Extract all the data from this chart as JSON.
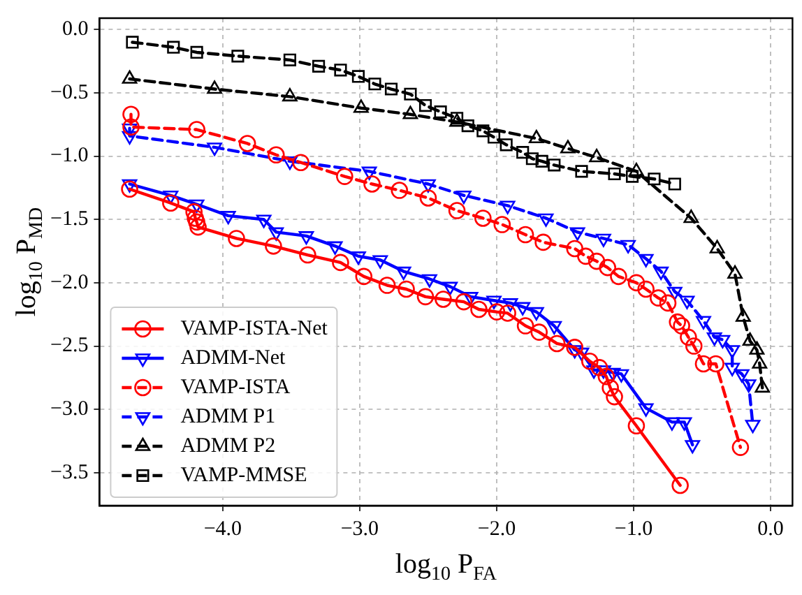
{
  "chart_data": {
    "type": "line",
    "xlabel": "log$_{10}$ P$_{FA}$",
    "ylabel": "log$_{10}$ P$_{MD}$",
    "xlim": [
      -4.9,
      0.16
    ],
    "ylim": [
      -3.76,
      0.09
    ],
    "xticks": [
      {
        "value": -4,
        "label": "−4.0"
      },
      {
        "value": -3,
        "label": "−3.0"
      },
      {
        "value": -2,
        "label": "−2.0"
      },
      {
        "value": -1,
        "label": "−1.0"
      },
      {
        "value": 0,
        "label": "0.0"
      }
    ],
    "yticks": [
      {
        "value": -3.5,
        "label": "−3.5"
      },
      {
        "value": -3,
        "label": "−3.0"
      },
      {
        "value": -2.5,
        "label": "−2.5"
      },
      {
        "value": -2,
        "label": "−2.0"
      },
      {
        "value": -1.5,
        "label": "−1.5"
      },
      {
        "value": -1,
        "label": "−1.0"
      },
      {
        "value": -0.5,
        "label": "−0.5"
      },
      {
        "value": 0,
        "label": "0.0"
      }
    ],
    "grid": true,
    "legend": "bottom left",
    "series": [
      {
        "name": "VAMP-ISTA-Net",
        "color": "#ff0000",
        "marker": "circle",
        "line_style": "solid",
        "x": [
          -4.68,
          -4.38,
          -4.21,
          -4.2,
          -4.19,
          -4.18,
          -3.9,
          -3.63,
          -3.38,
          -3.14,
          -2.97,
          -2.8,
          -2.66,
          -2.52,
          -2.39,
          -2.24,
          -2.13,
          -2.0,
          -1.92,
          -1.79,
          -1.69,
          -1.56,
          -1.43,
          -1.32,
          -1.25,
          -1.2,
          -1.17,
          -1.14,
          -0.98,
          -0.66
        ],
        "values": [
          -1.26,
          -1.37,
          -1.44,
          -1.49,
          -1.52,
          -1.56,
          -1.65,
          -1.71,
          -1.78,
          -1.84,
          -1.95,
          -2.02,
          -2.05,
          -2.11,
          -2.13,
          -2.15,
          -2.21,
          -2.23,
          -2.24,
          -2.34,
          -2.39,
          -2.48,
          -2.51,
          -2.62,
          -2.67,
          -2.74,
          -2.83,
          -2.9,
          -3.13,
          -3.6
        ]
      },
      {
        "name": "ADMM-Net",
        "color": "#0000ff",
        "marker": "triangle-down",
        "line_style": "solid",
        "x": [
          -4.68,
          -4.38,
          -4.19,
          -3.96,
          -3.7,
          -3.61,
          -3.39,
          -3.18,
          -3.01,
          -2.85,
          -2.68,
          -2.49,
          -2.34,
          -2.19,
          -2.02,
          -1.9,
          -1.81,
          -1.71,
          -1.58,
          -1.43,
          -1.38,
          -1.29,
          -1.22,
          -1.15,
          -1.09,
          -0.91,
          -0.72,
          -0.63,
          -0.57
        ],
        "values": [
          -1.22,
          -1.31,
          -1.38,
          -1.47,
          -1.5,
          -1.6,
          -1.63,
          -1.71,
          -1.79,
          -1.82,
          -1.91,
          -1.97,
          -2.03,
          -2.11,
          -2.14,
          -2.16,
          -2.19,
          -2.23,
          -2.34,
          -2.53,
          -2.55,
          -2.69,
          -2.69,
          -2.71,
          -2.72,
          -2.99,
          -3.1,
          -3.1,
          -3.28
        ]
      },
      {
        "name": "VAMP-ISTA",
        "color": "#ff0000",
        "marker": "circle",
        "line_style": "dashed",
        "x": [
          -4.67,
          -4.67,
          -4.19,
          -3.82,
          -3.61,
          -3.43,
          -3.11,
          -2.91,
          -2.71,
          -2.5,
          -2.29,
          -2.1,
          -1.96,
          -1.79,
          -1.66,
          -1.43,
          -1.35,
          -1.27,
          -1.19,
          -1.11,
          -0.98,
          -0.91,
          -0.82,
          -0.75,
          -0.68,
          -0.65,
          -0.6,
          -0.56,
          -0.49,
          -0.4,
          -0.22
        ],
        "values": [
          -0.67,
          -0.77,
          -0.79,
          -0.9,
          -0.99,
          -1.05,
          -1.16,
          -1.22,
          -1.27,
          -1.33,
          -1.43,
          -1.49,
          -1.54,
          -1.62,
          -1.68,
          -1.73,
          -1.79,
          -1.83,
          -1.88,
          -1.95,
          -2.0,
          -2.05,
          -2.12,
          -2.16,
          -2.31,
          -2.34,
          -2.43,
          -2.5,
          -2.64,
          -2.64,
          -3.3
        ]
      },
      {
        "name": "ADMM P1",
        "color": "#0000ff",
        "marker": "triangle-down",
        "line_style": "dashed",
        "x": [
          -4.68,
          -4.68,
          -4.06,
          -3.51,
          -2.93,
          -2.5,
          -2.24,
          -1.92,
          -1.64,
          -1.41,
          -1.22,
          -1.04,
          -0.91,
          -0.8,
          -0.7,
          -0.61,
          -0.49,
          -0.41,
          -0.35,
          -0.28,
          -0.28,
          -0.21,
          -0.16,
          -0.13
        ],
        "values": [
          -0.78,
          -0.84,
          -0.93,
          -1.04,
          -1.12,
          -1.22,
          -1.31,
          -1.39,
          -1.49,
          -1.6,
          -1.65,
          -1.7,
          -1.81,
          -1.91,
          -2.07,
          -2.14,
          -2.3,
          -2.43,
          -2.45,
          -2.53,
          -2.67,
          -2.72,
          -2.8,
          -3.12
        ]
      },
      {
        "name": "ADMM P2",
        "color": "#000000",
        "marker": "triangle",
        "line_style": "dashed",
        "x": [
          -4.68,
          -4.06,
          -3.51,
          -2.99,
          -2.63,
          -2.29,
          -1.71,
          -1.48,
          -1.27,
          -0.98,
          -0.58,
          -0.39,
          -0.26,
          -0.2,
          -0.15,
          -0.1,
          -0.08,
          -0.06
        ],
        "values": [
          -0.39,
          -0.47,
          -0.53,
          -0.62,
          -0.67,
          -0.73,
          -0.86,
          -0.94,
          -1.01,
          -1.12,
          -1.49,
          -1.73,
          -1.93,
          -2.27,
          -2.46,
          -2.53,
          -2.64,
          -2.83
        ]
      },
      {
        "name": "VAMP-MMSE",
        "color": "#000000",
        "marker": "square",
        "line_style": "dashed",
        "x": [
          -4.66,
          -4.36,
          -4.19,
          -3.89,
          -3.51,
          -3.3,
          -3.14,
          -3.01,
          -2.89,
          -2.77,
          -2.63,
          -2.52,
          -2.41,
          -2.29,
          -2.21,
          -2.1,
          -2.02,
          -1.93,
          -1.81,
          -1.74,
          -1.67,
          -1.58,
          -1.38,
          -1.14,
          -1.01,
          -0.85,
          -0.7
        ],
        "values": [
          -0.1,
          -0.14,
          -0.18,
          -0.21,
          -0.24,
          -0.29,
          -0.32,
          -0.37,
          -0.43,
          -0.47,
          -0.51,
          -0.6,
          -0.65,
          -0.7,
          -0.76,
          -0.8,
          -0.85,
          -0.91,
          -0.97,
          -1.02,
          -1.04,
          -1.07,
          -1.12,
          -1.14,
          -1.16,
          -1.18,
          -1.22
        ]
      }
    ]
  }
}
